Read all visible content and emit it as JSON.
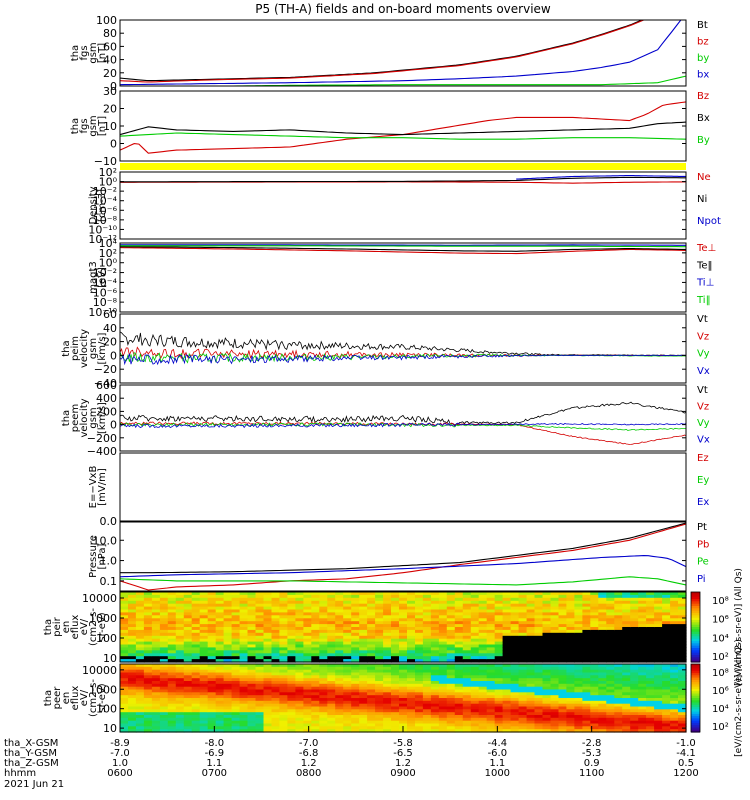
{
  "title": "P5 (TH-A) fields and on-board moments overview",
  "colors": {
    "black": "#000000",
    "red": "#d40000",
    "green": "#00cc00",
    "blue": "#0000cc",
    "yellow": "#ffff00"
  },
  "chart_data": [
    {
      "type": "line",
      "panel": "fgs_gsm",
      "ylabel": [
        "tha",
        "fgs",
        "gsm",
        "[nT]"
      ],
      "ylim": [
        0,
        100
      ],
      "scale": "linear",
      "y_ticks": [
        "100",
        "80",
        "60",
        "40",
        "20",
        "0"
      ],
      "legend": [
        {
          "label": "Bt",
          "color": "black"
        },
        {
          "label": "bz",
          "color": "red"
        },
        {
          "label": "by",
          "color": "green"
        },
        {
          "label": "bx",
          "color": "blue"
        }
      ],
      "series": [
        {
          "name": "Bt",
          "color": "black",
          "x": [
            0,
            0.05,
            0.15,
            0.3,
            0.45,
            0.6,
            0.7,
            0.8,
            0.85,
            0.9,
            0.95
          ],
          "y": [
            12,
            8,
            10,
            13,
            20,
            32,
            45,
            65,
            78,
            92,
            110
          ]
        },
        {
          "name": "bz",
          "color": "red",
          "x": [
            0,
            0.05,
            0.15,
            0.3,
            0.45,
            0.6,
            0.7,
            0.8,
            0.85,
            0.9,
            0.95
          ],
          "y": [
            8,
            6,
            9,
            12,
            19,
            31,
            44,
            64,
            77,
            91,
            109
          ]
        },
        {
          "name": "bx",
          "color": "blue",
          "x": [
            0,
            0.1,
            0.3,
            0.5,
            0.6,
            0.7,
            0.8,
            0.85,
            0.9,
            0.95,
            1.0
          ],
          "y": [
            2,
            3,
            5,
            8,
            11,
            15,
            22,
            28,
            36,
            55,
            110
          ]
        },
        {
          "name": "by",
          "color": "green",
          "x": [
            0,
            0.1,
            0.3,
            0.5,
            0.7,
            0.85,
            0.95,
            1.0
          ],
          "y": [
            -2,
            -1,
            1,
            2,
            2,
            2,
            5,
            15
          ]
        }
      ]
    },
    {
      "type": "line",
      "panel": "fgs_gsm_zoom",
      "ylabel": [
        "tha",
        "fgs",
        "gsm",
        "[nT]"
      ],
      "ylim": [
        -15,
        30
      ],
      "scale": "linear",
      "y_ticks": [
        "30",
        "20",
        "10",
        "0",
        "−10"
      ],
      "legend": [
        {
          "label": "Bz",
          "color": "red"
        },
        {
          "label": "Bx",
          "color": "black"
        },
        {
          "label": "By",
          "color": "green"
        }
      ],
      "series": [
        {
          "name": "Bz",
          "color": "red",
          "x": [
            0,
            0.03,
            0.05,
            0.1,
            0.2,
            0.3,
            0.4,
            0.5,
            0.6,
            0.65,
            0.7,
            0.8,
            0.9,
            0.93,
            0.96,
            1.0
          ],
          "y": [
            -8,
            -3,
            -10,
            -8,
            -7,
            -6,
            -1,
            2,
            8,
            11,
            13,
            13,
            11,
            15,
            21,
            23
          ]
        },
        {
          "name": "Bx",
          "color": "black",
          "x": [
            0,
            0.05,
            0.1,
            0.2,
            0.3,
            0.4,
            0.5,
            0.6,
            0.7,
            0.8,
            0.9,
            0.95,
            1.0
          ],
          "y": [
            2,
            7,
            5,
            4,
            5,
            3,
            2,
            3,
            4,
            5,
            6,
            9,
            10
          ]
        },
        {
          "name": "By",
          "color": "green",
          "x": [
            0,
            0.05,
            0.1,
            0.2,
            0.3,
            0.4,
            0.5,
            0.6,
            0.7,
            0.8,
            0.9,
            1.0
          ],
          "y": [
            1,
            2,
            3,
            2,
            1,
            0,
            0,
            -1,
            -1,
            0,
            0,
            -1
          ]
        }
      ]
    },
    {
      "type": "line",
      "panel": "density",
      "ylabel": [
        "Density",
        "[cm-3]"
      ],
      "scale": "log",
      "ylim_log10": [
        -13,
        2
      ],
      "y_ticks": [
        "10²",
        "10⁰",
        "10⁻²",
        "10⁻⁴",
        "10⁻⁶",
        "10⁻⁸",
        "10⁻¹⁰",
        "10⁻¹²"
      ],
      "legend": [
        {
          "label": "Ne",
          "color": "red"
        },
        {
          "label": "Ni",
          "color": "black"
        },
        {
          "label": "Npot",
          "color": "blue"
        }
      ],
      "series": [
        {
          "name": "Ne",
          "color": "red",
          "x": [
            0,
            0.5,
            0.7,
            0.8,
            0.9,
            1.0
          ],
          "y_log10": [
            -0.3,
            -0.2,
            -0.3,
            -0.5,
            -0.3,
            -0.2
          ]
        },
        {
          "name": "Ni",
          "color": "black",
          "x": [
            0,
            0.5,
            0.7,
            0.8,
            0.9,
            1.0
          ],
          "y_log10": [
            -0.2,
            -0.1,
            0.1,
            0.6,
            0.8,
            0.7
          ]
        },
        {
          "name": "Npot",
          "color": "blue",
          "x": [
            0.7,
            0.8,
            0.9,
            1.0
          ],
          "y_log10": [
            0.4,
            1.0,
            1.2,
            1.0
          ]
        }
      ]
    },
    {
      "type": "line",
      "panel": "temperature",
      "ylabel": [
        "magt3",
        "[eV]"
      ],
      "scale": "log",
      "ylim_log10": [
        -11,
        4
      ],
      "y_ticks": [
        "10⁴",
        "10²",
        "10⁰",
        "10⁻²",
        "10⁻⁴",
        "10⁻⁶",
        "10⁻⁸",
        "10⁻¹⁰"
      ],
      "legend": [
        {
          "label": "Te⊥",
          "color": "red"
        },
        {
          "label": "Te‖",
          "color": "black"
        },
        {
          "label": "Ti⊥",
          "color": "blue"
        },
        {
          "label": "Ti‖",
          "color": "green"
        }
      ],
      "series": [
        {
          "name": "Te⊥",
          "color": "red",
          "x": [
            0,
            0.2,
            0.4,
            0.6,
            0.7,
            0.8,
            0.9,
            1.0
          ],
          "y_log10": [
            3.0,
            2.7,
            2.3,
            1.8,
            1.7,
            2.2,
            2.6,
            2.4
          ]
        },
        {
          "name": "Te‖",
          "color": "black",
          "x": [
            0,
            0.2,
            0.4,
            0.6,
            0.7,
            0.8,
            0.9,
            1.0
          ],
          "y_log10": [
            3.2,
            3.0,
            2.7,
            2.3,
            2.2,
            2.6,
            2.8,
            2.6
          ]
        },
        {
          "name": "Ti⊥",
          "color": "blue",
          "x": [
            0,
            0.3,
            0.6,
            0.8,
            1.0
          ],
          "y_log10": [
            3.6,
            3.6,
            3.5,
            3.6,
            3.5
          ]
        },
        {
          "name": "Ti‖",
          "color": "green",
          "x": [
            0,
            0.3,
            0.6,
            0.8,
            1.0
          ],
          "y_log10": [
            3.4,
            3.4,
            3.3,
            3.3,
            3.2
          ]
        }
      ]
    },
    {
      "type": "line",
      "panel": "peim_velocity",
      "ylabel": [
        "tha",
        "peim",
        "velocity",
        "gsm",
        "[km/s]"
      ],
      "ylim": [
        -40,
        60
      ],
      "scale": "linear",
      "y_ticks": [
        "60",
        "40",
        "20",
        "0",
        "−20",
        "−40"
      ],
      "legend": [
        {
          "label": "Vt",
          "color": "black"
        },
        {
          "label": "Vz",
          "color": "red"
        },
        {
          "label": "Vy",
          "color": "green"
        },
        {
          "label": "Vx",
          "color": "blue"
        }
      ],
      "series": [
        {
          "name": "Vt",
          "color": "black",
          "noise": 10,
          "x": [
            0,
            0.1,
            0.3,
            0.5,
            0.65,
            0.75,
            1.0
          ],
          "y": [
            25,
            20,
            15,
            12,
            5,
            1,
            0
          ]
        },
        {
          "name": "Vz",
          "color": "red",
          "noise": 8,
          "x": [
            0,
            0.1,
            0.3,
            0.5,
            0.65,
            0.75,
            1.0
          ],
          "y": [
            5,
            3,
            2,
            1,
            0,
            0,
            0
          ]
        },
        {
          "name": "Vy",
          "color": "green",
          "noise": 8,
          "x": [
            0,
            0.1,
            0.3,
            0.5,
            0.65,
            0.75,
            1.0
          ],
          "y": [
            -3,
            -4,
            -3,
            -2,
            0,
            0,
            -1
          ]
        },
        {
          "name": "Vx",
          "color": "blue",
          "noise": 8,
          "x": [
            0,
            0.1,
            0.3,
            0.5,
            0.65,
            0.75,
            1.0
          ],
          "y": [
            -5,
            -6,
            -5,
            -3,
            -1,
            0,
            0
          ]
        }
      ]
    },
    {
      "type": "line",
      "panel": "peem_velocity",
      "ylabel": [
        "tha",
        "peem",
        "velocity",
        "gsm",
        "[km/s]"
      ],
      "ylim": [
        -400,
        600
      ],
      "scale": "linear",
      "y_ticks": [
        "600",
        "400",
        "200",
        "0",
        "−200",
        "−400"
      ],
      "legend": [
        {
          "label": "Vt",
          "color": "black"
        },
        {
          "label": "Vz",
          "color": "red"
        },
        {
          "label": "Vy",
          "color": "green"
        },
        {
          "label": "Vx",
          "color": "blue"
        }
      ],
      "series": [
        {
          "name": "Vt",
          "color": "black",
          "noise": 45,
          "x": [
            0,
            0.2,
            0.4,
            0.5,
            0.6,
            0.7,
            0.8,
            0.9,
            1.0
          ],
          "y": [
            100,
            90,
            80,
            100,
            30,
            30,
            250,
            330,
            180
          ]
        },
        {
          "name": "Vz",
          "color": "red",
          "noise": 20,
          "x": [
            0,
            0.2,
            0.4,
            0.6,
            0.7,
            0.8,
            0.9,
            1.0
          ],
          "y": [
            20,
            20,
            15,
            5,
            0,
            -180,
            -300,
            -160
          ]
        },
        {
          "name": "Vy",
          "color": "green",
          "noise": 25,
          "x": [
            0,
            0.2,
            0.4,
            0.6,
            0.7,
            0.8,
            0.9,
            1.0
          ],
          "y": [
            0,
            0,
            0,
            -10,
            -10,
            -50,
            -80,
            -60
          ]
        },
        {
          "name": "Vx",
          "color": "blue",
          "noise": 25,
          "x": [
            0,
            0.2,
            0.4,
            0.6,
            0.7,
            0.8,
            0.9,
            1.0
          ],
          "y": [
            -20,
            -20,
            -10,
            0,
            5,
            10,
            0,
            10
          ]
        }
      ]
    },
    {
      "type": "line",
      "panel": "e_field",
      "ylabel": [
        "E=−VxB",
        "[mV/m]"
      ],
      "ylim": [
        0,
        1
      ],
      "scale": "linear",
      "y_ticks": [
        "0.0"
      ],
      "legend": [
        {
          "label": "Ez",
          "color": "red"
        },
        {
          "label": "Ey",
          "color": "green"
        },
        {
          "label": "Ex",
          "color": "blue"
        }
      ],
      "series": []
    },
    {
      "type": "line",
      "panel": "pressure",
      "ylabel": [
        "Pressure",
        "[nPa]"
      ],
      "scale": "log",
      "ylim_log10": [
        -1.5,
        1.9
      ],
      "y_ticks": [
        "10.0",
        "1.0",
        "0.1"
      ],
      "legend": [
        {
          "label": "Pt",
          "color": "black"
        },
        {
          "label": "Pb",
          "color": "red"
        },
        {
          "label": "Pe",
          "color": "green"
        },
        {
          "label": "Pi",
          "color": "blue"
        }
      ],
      "series": [
        {
          "name": "Pt",
          "color": "black",
          "x": [
            0,
            0.05,
            0.2,
            0.4,
            0.6,
            0.8,
            0.9,
            1.0
          ],
          "y_log10": [
            -0.6,
            -0.6,
            -0.55,
            -0.4,
            -0.1,
            0.6,
            1.1,
            1.85
          ]
        },
        {
          "name": "Pb",
          "color": "red",
          "x": [
            0,
            0.05,
            0.1,
            0.2,
            0.3,
            0.4,
            0.5,
            0.6,
            0.8,
            0.9,
            1.0
          ],
          "y_log10": [
            -1.0,
            -1.45,
            -1.3,
            -1.2,
            -1.0,
            -0.9,
            -0.6,
            -0.2,
            0.5,
            1.0,
            1.8
          ]
        },
        {
          "name": "Pi",
          "color": "blue",
          "x": [
            0,
            0.1,
            0.3,
            0.5,
            0.7,
            0.85,
            0.93,
            0.97,
            1.0
          ],
          "y_log10": [
            -0.8,
            -0.7,
            -0.6,
            -0.4,
            -0.15,
            0.15,
            0.25,
            0.1,
            -0.3
          ]
        },
        {
          "name": "Pe",
          "color": "green",
          "x": [
            0,
            0.1,
            0.3,
            0.5,
            0.7,
            0.8,
            0.9,
            0.95,
            1.0
          ],
          "y_log10": [
            -0.9,
            -1.0,
            -1.0,
            -1.1,
            -1.2,
            -1.05,
            -0.8,
            -0.9,
            -1.2
          ]
        }
      ]
    },
    {
      "type": "heatmap",
      "panel": "peir_en_eflux",
      "ylabel": [
        "tha",
        "peir",
        "en",
        "eflux",
        "eV/",
        "(cm2-s-",
        "sr-eV)"
      ],
      "scale": "log",
      "ylim_log10": [
        0.8,
        4.3
      ],
      "y_ticks": [
        "10000",
        "1000",
        "100",
        "10"
      ]
    },
    {
      "type": "heatmap",
      "panel": "peer_en_eflux",
      "ylabel": [
        "tha",
        "peer",
        "en",
        "eflux",
        "eV/",
        "(cm2-s-",
        "sr-eV)"
      ],
      "scale": "log",
      "ylim_log10": [
        0.8,
        4.3
      ],
      "y_ticks": [
        "10000",
        "1000",
        "100",
        "10"
      ]
    }
  ],
  "colorbars": [
    {
      "ticks": [
        "10⁸",
        "10⁶",
        "10⁴",
        "10²"
      ],
      "label": "[eV/(cm2-s-sr-eV)] (All Qs)"
    },
    {
      "ticks": [
        "10⁸",
        "10⁶",
        "10⁴",
        "10²"
      ],
      "label": "[eV/(cm2-s-sr-eV)] (All Qs)"
    }
  ],
  "x_axis": {
    "row_labels": [
      "tha_X-GSM",
      "tha_Y-GSM",
      "tha_Z-GSM",
      "hhmm",
      "2021 Jun 21"
    ],
    "columns": [
      [
        "-8.9",
        "-7.0",
        "1.0",
        "0600"
      ],
      [
        "-8.0",
        "-6.9",
        "1.1",
        "0700"
      ],
      [
        "-7.0",
        "-6.8",
        "1.2",
        "0800"
      ],
      [
        "-5.8",
        "-6.5",
        "1.2",
        "0900"
      ],
      [
        "-4.4",
        "-6.0",
        "1.1",
        "1000"
      ],
      [
        "-2.8",
        "-5.3",
        "0.9",
        "1100"
      ],
      [
        "-1.0",
        "-4.1",
        "0.5",
        "1200"
      ]
    ]
  }
}
